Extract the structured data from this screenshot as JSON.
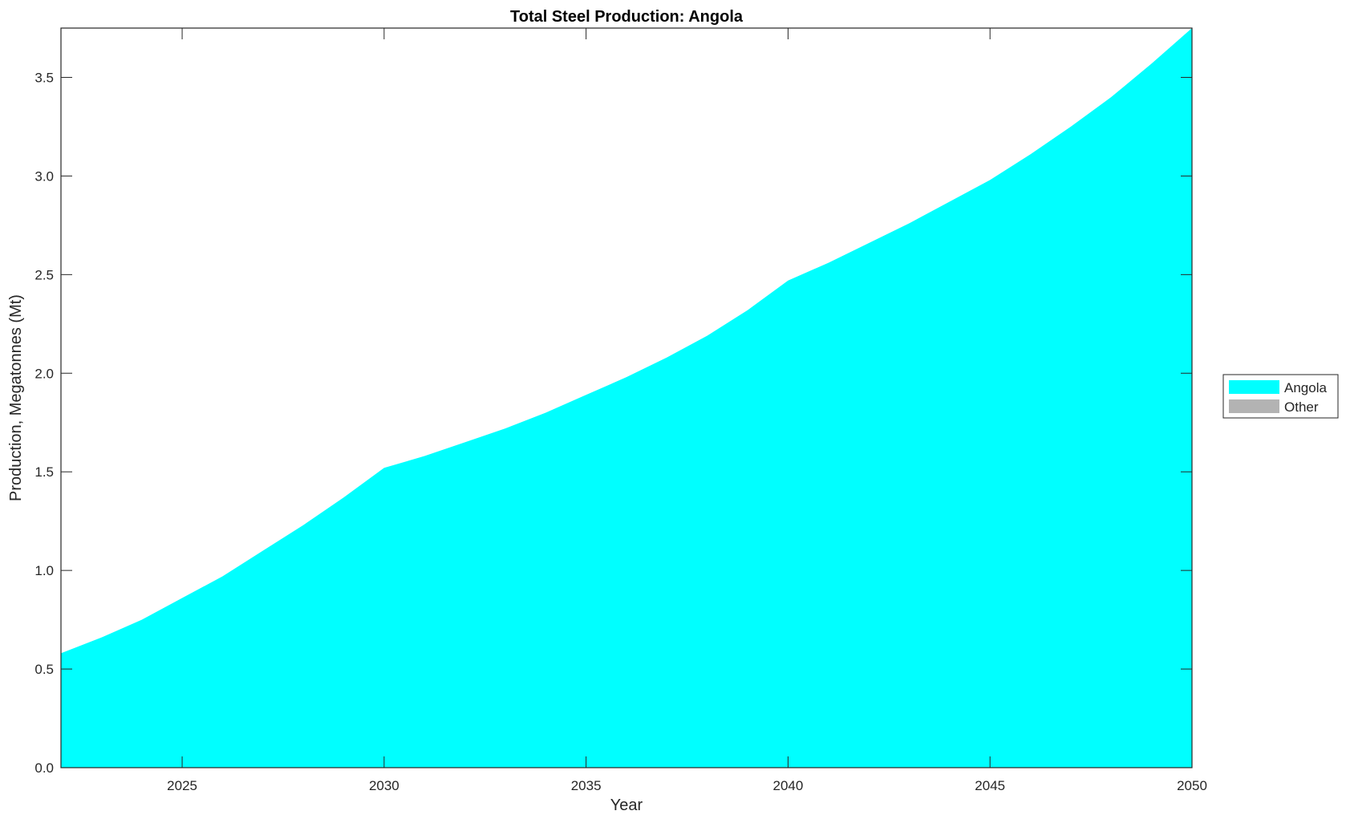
{
  "chart_data": {
    "type": "area",
    "title": "Total Steel Production: Angola",
    "xlabel": "Year",
    "ylabel": "Production, Megatonnes (Mt)",
    "xlim": [
      2022,
      2050
    ],
    "ylim": [
      0,
      3.75
    ],
    "xticks": [
      2025,
      2030,
      2035,
      2040,
      2045,
      2050
    ],
    "yticks": [
      "0.0",
      "0.5",
      "1.0",
      "1.5",
      "2.0",
      "2.5",
      "3.0",
      "3.5"
    ],
    "grid": false,
    "legend_position": "right",
    "x": [
      2022,
      2023,
      2024,
      2025,
      2026,
      2027,
      2028,
      2029,
      2030,
      2031,
      2032,
      2033,
      2034,
      2035,
      2036,
      2037,
      2038,
      2039,
      2040,
      2041,
      2042,
      2043,
      2044,
      2045,
      2046,
      2047,
      2048,
      2049,
      2050
    ],
    "series": [
      {
        "name": "Angola",
        "color": "#00FFFF",
        "values": [
          0.58,
          0.66,
          0.75,
          0.86,
          0.97,
          1.1,
          1.23,
          1.37,
          1.52,
          1.58,
          1.65,
          1.72,
          1.8,
          1.89,
          1.98,
          2.08,
          2.19,
          2.32,
          2.47,
          2.56,
          2.66,
          2.76,
          2.87,
          2.98,
          3.11,
          3.25,
          3.4,
          3.57,
          3.75
        ]
      },
      {
        "name": "Other",
        "color": "#B3B3B3",
        "values": [
          0,
          0,
          0,
          0,
          0,
          0,
          0,
          0,
          0,
          0,
          0,
          0,
          0,
          0,
          0,
          0,
          0,
          0,
          0,
          0,
          0,
          0,
          0,
          0,
          0,
          0,
          0,
          0,
          0
        ]
      }
    ]
  }
}
